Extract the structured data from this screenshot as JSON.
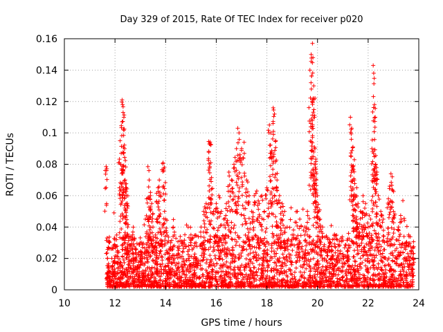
{
  "chart_data": {
    "type": "scatter",
    "title": "Day 329 of 2015, Rate Of TEC Index for receiver p020",
    "xlabel": "GPS time / hours",
    "ylabel": "ROTI / TECUs",
    "xlim": [
      10,
      24
    ],
    "ylim": [
      0,
      0.16
    ],
    "x_ticks": [
      10,
      12,
      14,
      16,
      18,
      20,
      22,
      24
    ],
    "x_tick_labels": [
      "10",
      "12",
      "14",
      "16",
      "18",
      "20",
      "22",
      "24"
    ],
    "y_ticks": [
      0,
      0.02,
      0.04,
      0.06,
      0.08,
      0.1,
      0.12,
      0.14,
      0.16
    ],
    "y_tick_labels": [
      "0",
      "0.02",
      "0.04",
      "0.06",
      "0.08",
      "0.1",
      "0.12",
      "0.14",
      "0.16"
    ],
    "grid": true,
    "marker": "plus",
    "color": "#ff0000",
    "series": [
      {
        "points": [
          [
            11.65,
            0.0785
          ],
          [
            11.7,
            0.02
          ],
          [
            11.75,
            0.012
          ],
          [
            11.8,
            0.008
          ],
          [
            11.9,
            0.015
          ],
          [
            12.0,
            0.018
          ],
          [
            12.1,
            0.025
          ],
          [
            12.2,
            0.095
          ],
          [
            12.22,
            0.08
          ],
          [
            12.28,
            0.121
          ],
          [
            12.3,
            0.118
          ],
          [
            12.32,
            0.113
          ],
          [
            12.35,
            0.11
          ],
          [
            12.38,
            0.09
          ],
          [
            12.4,
            0.07
          ],
          [
            12.42,
            0.065
          ],
          [
            12.45,
            0.06
          ],
          [
            12.48,
            0.055
          ],
          [
            12.5,
            0.04
          ],
          [
            12.6,
            0.025
          ],
          [
            12.7,
            0.035
          ],
          [
            12.8,
            0.02
          ],
          [
            12.9,
            0.015
          ],
          [
            13.0,
            0.03
          ],
          [
            13.1,
            0.012
          ],
          [
            13.2,
            0.045
          ],
          [
            13.3,
            0.0785
          ],
          [
            13.35,
            0.07
          ],
          [
            13.4,
            0.06
          ],
          [
            13.45,
            0.055
          ],
          [
            13.5,
            0.04
          ],
          [
            13.6,
            0.03
          ],
          [
            13.7,
            0.065
          ],
          [
            13.75,
            0.07
          ],
          [
            13.8,
            0.06
          ],
          [
            13.9,
            0.081
          ],
          [
            13.95,
            0.078
          ],
          [
            14.0,
            0.045
          ],
          [
            14.1,
            0.02
          ],
          [
            14.2,
            0.03
          ],
          [
            14.3,
            0.04
          ],
          [
            14.5,
            0.025
          ],
          [
            14.7,
            0.03
          ],
          [
            14.9,
            0.02
          ],
          [
            15.0,
            0.035
          ],
          [
            15.2,
            0.03
          ],
          [
            15.4,
            0.04
          ],
          [
            15.5,
            0.05
          ],
          [
            15.6,
            0.055
          ],
          [
            15.7,
            0.0945
          ],
          [
            15.75,
            0.093
          ],
          [
            15.78,
            0.081
          ],
          [
            15.8,
            0.069
          ],
          [
            15.9,
            0.05
          ],
          [
            16.0,
            0.055
          ],
          [
            16.1,
            0.06
          ],
          [
            16.2,
            0.05
          ],
          [
            16.3,
            0.045
          ],
          [
            16.4,
            0.055
          ],
          [
            16.5,
            0.075
          ],
          [
            16.6,
            0.07
          ],
          [
            16.7,
            0.08
          ],
          [
            16.8,
            0.09
          ],
          [
            16.85,
            0.103
          ],
          [
            16.9,
            0.1
          ],
          [
            17.0,
            0.09
          ],
          [
            17.1,
            0.094
          ],
          [
            17.2,
            0.07
          ],
          [
            17.3,
            0.06
          ],
          [
            17.4,
            0.05
          ],
          [
            17.5,
            0.06
          ],
          [
            17.6,
            0.063
          ],
          [
            17.7,
            0.055
          ],
          [
            17.8,
            0.06
          ],
          [
            17.9,
            0.05
          ],
          [
            18.0,
            0.065
          ],
          [
            18.1,
            0.105
          ],
          [
            18.15,
            0.1
          ],
          [
            18.2,
            0.085
          ],
          [
            18.25,
            0.116
          ],
          [
            18.3,
            0.112
          ],
          [
            18.35,
            0.095
          ],
          [
            18.4,
            0.07
          ],
          [
            18.5,
            0.06
          ],
          [
            18.6,
            0.055
          ],
          [
            18.7,
            0.05
          ],
          [
            18.8,
            0.04
          ],
          [
            19.0,
            0.035
          ],
          [
            19.2,
            0.05
          ],
          [
            19.3,
            0.045
          ],
          [
            19.5,
            0.04
          ],
          [
            19.6,
            0.05
          ],
          [
            19.7,
            0.14
          ],
          [
            19.75,
            0.15
          ],
          [
            19.78,
            0.12
          ],
          [
            19.8,
            0.157
          ],
          [
            19.82,
            0.148
          ],
          [
            19.85,
            0.13
          ],
          [
            19.88,
            0.11
          ],
          [
            19.9,
            0.09
          ],
          [
            19.92,
            0.08
          ],
          [
            19.95,
            0.07
          ],
          [
            20.0,
            0.06
          ],
          [
            20.05,
            0.05
          ],
          [
            20.1,
            0.045
          ],
          [
            20.2,
            0.04
          ],
          [
            20.5,
            0.03
          ],
          [
            20.8,
            0.025
          ],
          [
            21.0,
            0.02
          ],
          [
            21.2,
            0.025
          ],
          [
            21.3,
            0.11
          ],
          [
            21.35,
            0.103
          ],
          [
            21.4,
            0.091
          ],
          [
            21.42,
            0.079
          ],
          [
            21.45,
            0.07
          ],
          [
            21.5,
            0.06
          ],
          [
            21.55,
            0.065
          ],
          [
            21.6,
            0.055
          ],
          [
            21.7,
            0.05
          ],
          [
            21.8,
            0.06
          ],
          [
            21.9,
            0.055
          ],
          [
            22.0,
            0.04
          ],
          [
            22.1,
            0.045
          ],
          [
            22.15,
            0.09
          ],
          [
            22.2,
            0.143
          ],
          [
            22.22,
            0.138
          ],
          [
            22.25,
            0.118
          ],
          [
            22.28,
            0.11
          ],
          [
            22.3,
            0.08
          ],
          [
            22.35,
            0.075
          ],
          [
            22.4,
            0.06
          ],
          [
            22.5,
            0.05
          ],
          [
            22.6,
            0.045
          ],
          [
            22.8,
            0.058
          ],
          [
            22.9,
            0.074
          ],
          [
            22.95,
            0.072
          ],
          [
            23.0,
            0.05
          ],
          [
            23.2,
            0.04
          ],
          [
            23.3,
            0.045
          ],
          [
            23.5,
            0.03
          ],
          [
            23.6,
            0.035
          ],
          [
            23.7,
            0.025
          ],
          [
            23.75,
            0.02
          ]
        ],
        "dense_band": {
          "x_range": [
            11.65,
            23.8
          ],
          "y_typical": [
            0.002,
            0.035
          ],
          "description_free": true
        }
      }
    ]
  }
}
